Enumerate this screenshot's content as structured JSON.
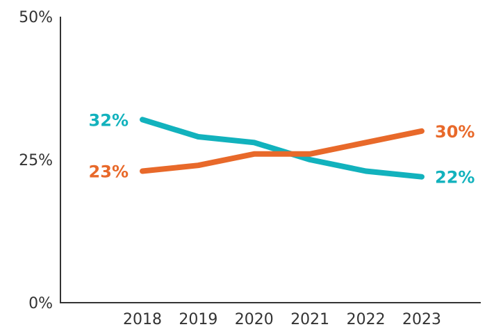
{
  "chart_data": {
    "type": "line",
    "categories": [
      "2018",
      "2019",
      "2020",
      "2021",
      "2022",
      "2023"
    ],
    "ylim": [
      0,
      50
    ],
    "yticks": [
      {
        "value": 0,
        "label": "0%"
      },
      {
        "value": 25,
        "label": "25%"
      },
      {
        "value": 50,
        "label": "50%"
      }
    ],
    "grid": false,
    "series": [
      {
        "color": "#12b2bd",
        "values": [
          32,
          29,
          28,
          25,
          23,
          22
        ],
        "start_label": "32%",
        "end_label": "22%"
      },
      {
        "color": "#e8692a",
        "values": [
          23,
          24,
          26,
          26,
          28,
          30
        ],
        "start_label": "23%",
        "end_label": "30%"
      }
    ]
  }
}
